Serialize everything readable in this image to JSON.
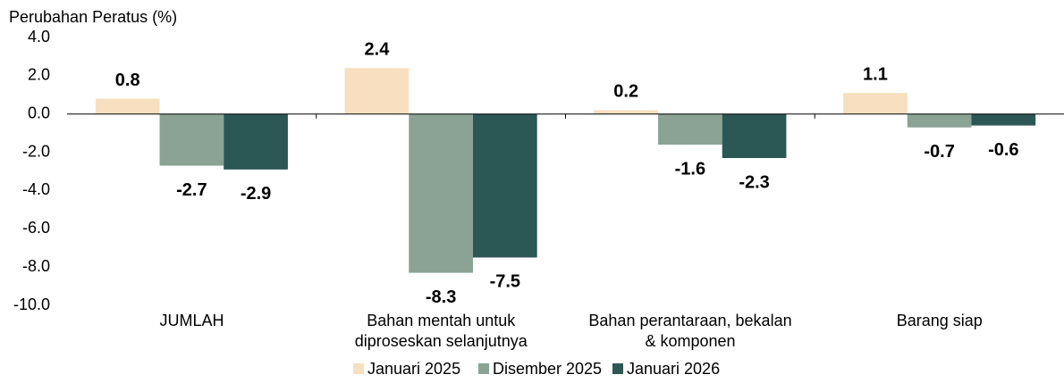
{
  "chart_data": {
    "type": "bar",
    "y_axis_label": "Perubahan Peratus (%)",
    "categories": [
      "JUMLAH",
      "Bahan mentah untuk\ndiproseskan selanjutnya",
      "Bahan perantaraan, bekalan\n& komponen",
      "Barang siap"
    ],
    "series": [
      {
        "name": "Januari 2025",
        "color": "#f7dfbf",
        "values": [
          0.8,
          2.4,
          0.2,
          1.1
        ]
      },
      {
        "name": "Disember 2025",
        "color": "#8aa395",
        "values": [
          -2.7,
          -8.3,
          -1.6,
          -0.7
        ]
      },
      {
        "name": "Januari 2026",
        "color": "#2b5755",
        "values": [
          -2.9,
          -7.5,
          -2.3,
          -0.6
        ]
      }
    ],
    "ylim": [
      -10,
      4
    ],
    "yticks": [
      {
        "value": 4,
        "label": "4.0"
      },
      {
        "value": 2,
        "label": "2.0"
      },
      {
        "value": 0,
        "label": "0.0"
      },
      {
        "value": -2,
        "label": "-2.0"
      },
      {
        "value": -4,
        "label": "-4.0"
      },
      {
        "value": -6,
        "label": "-6.0"
      },
      {
        "value": -8,
        "label": "-8.0"
      },
      {
        "value": -10,
        "label": "-10.0"
      }
    ],
    "grid": false,
    "legend": "bottom"
  }
}
